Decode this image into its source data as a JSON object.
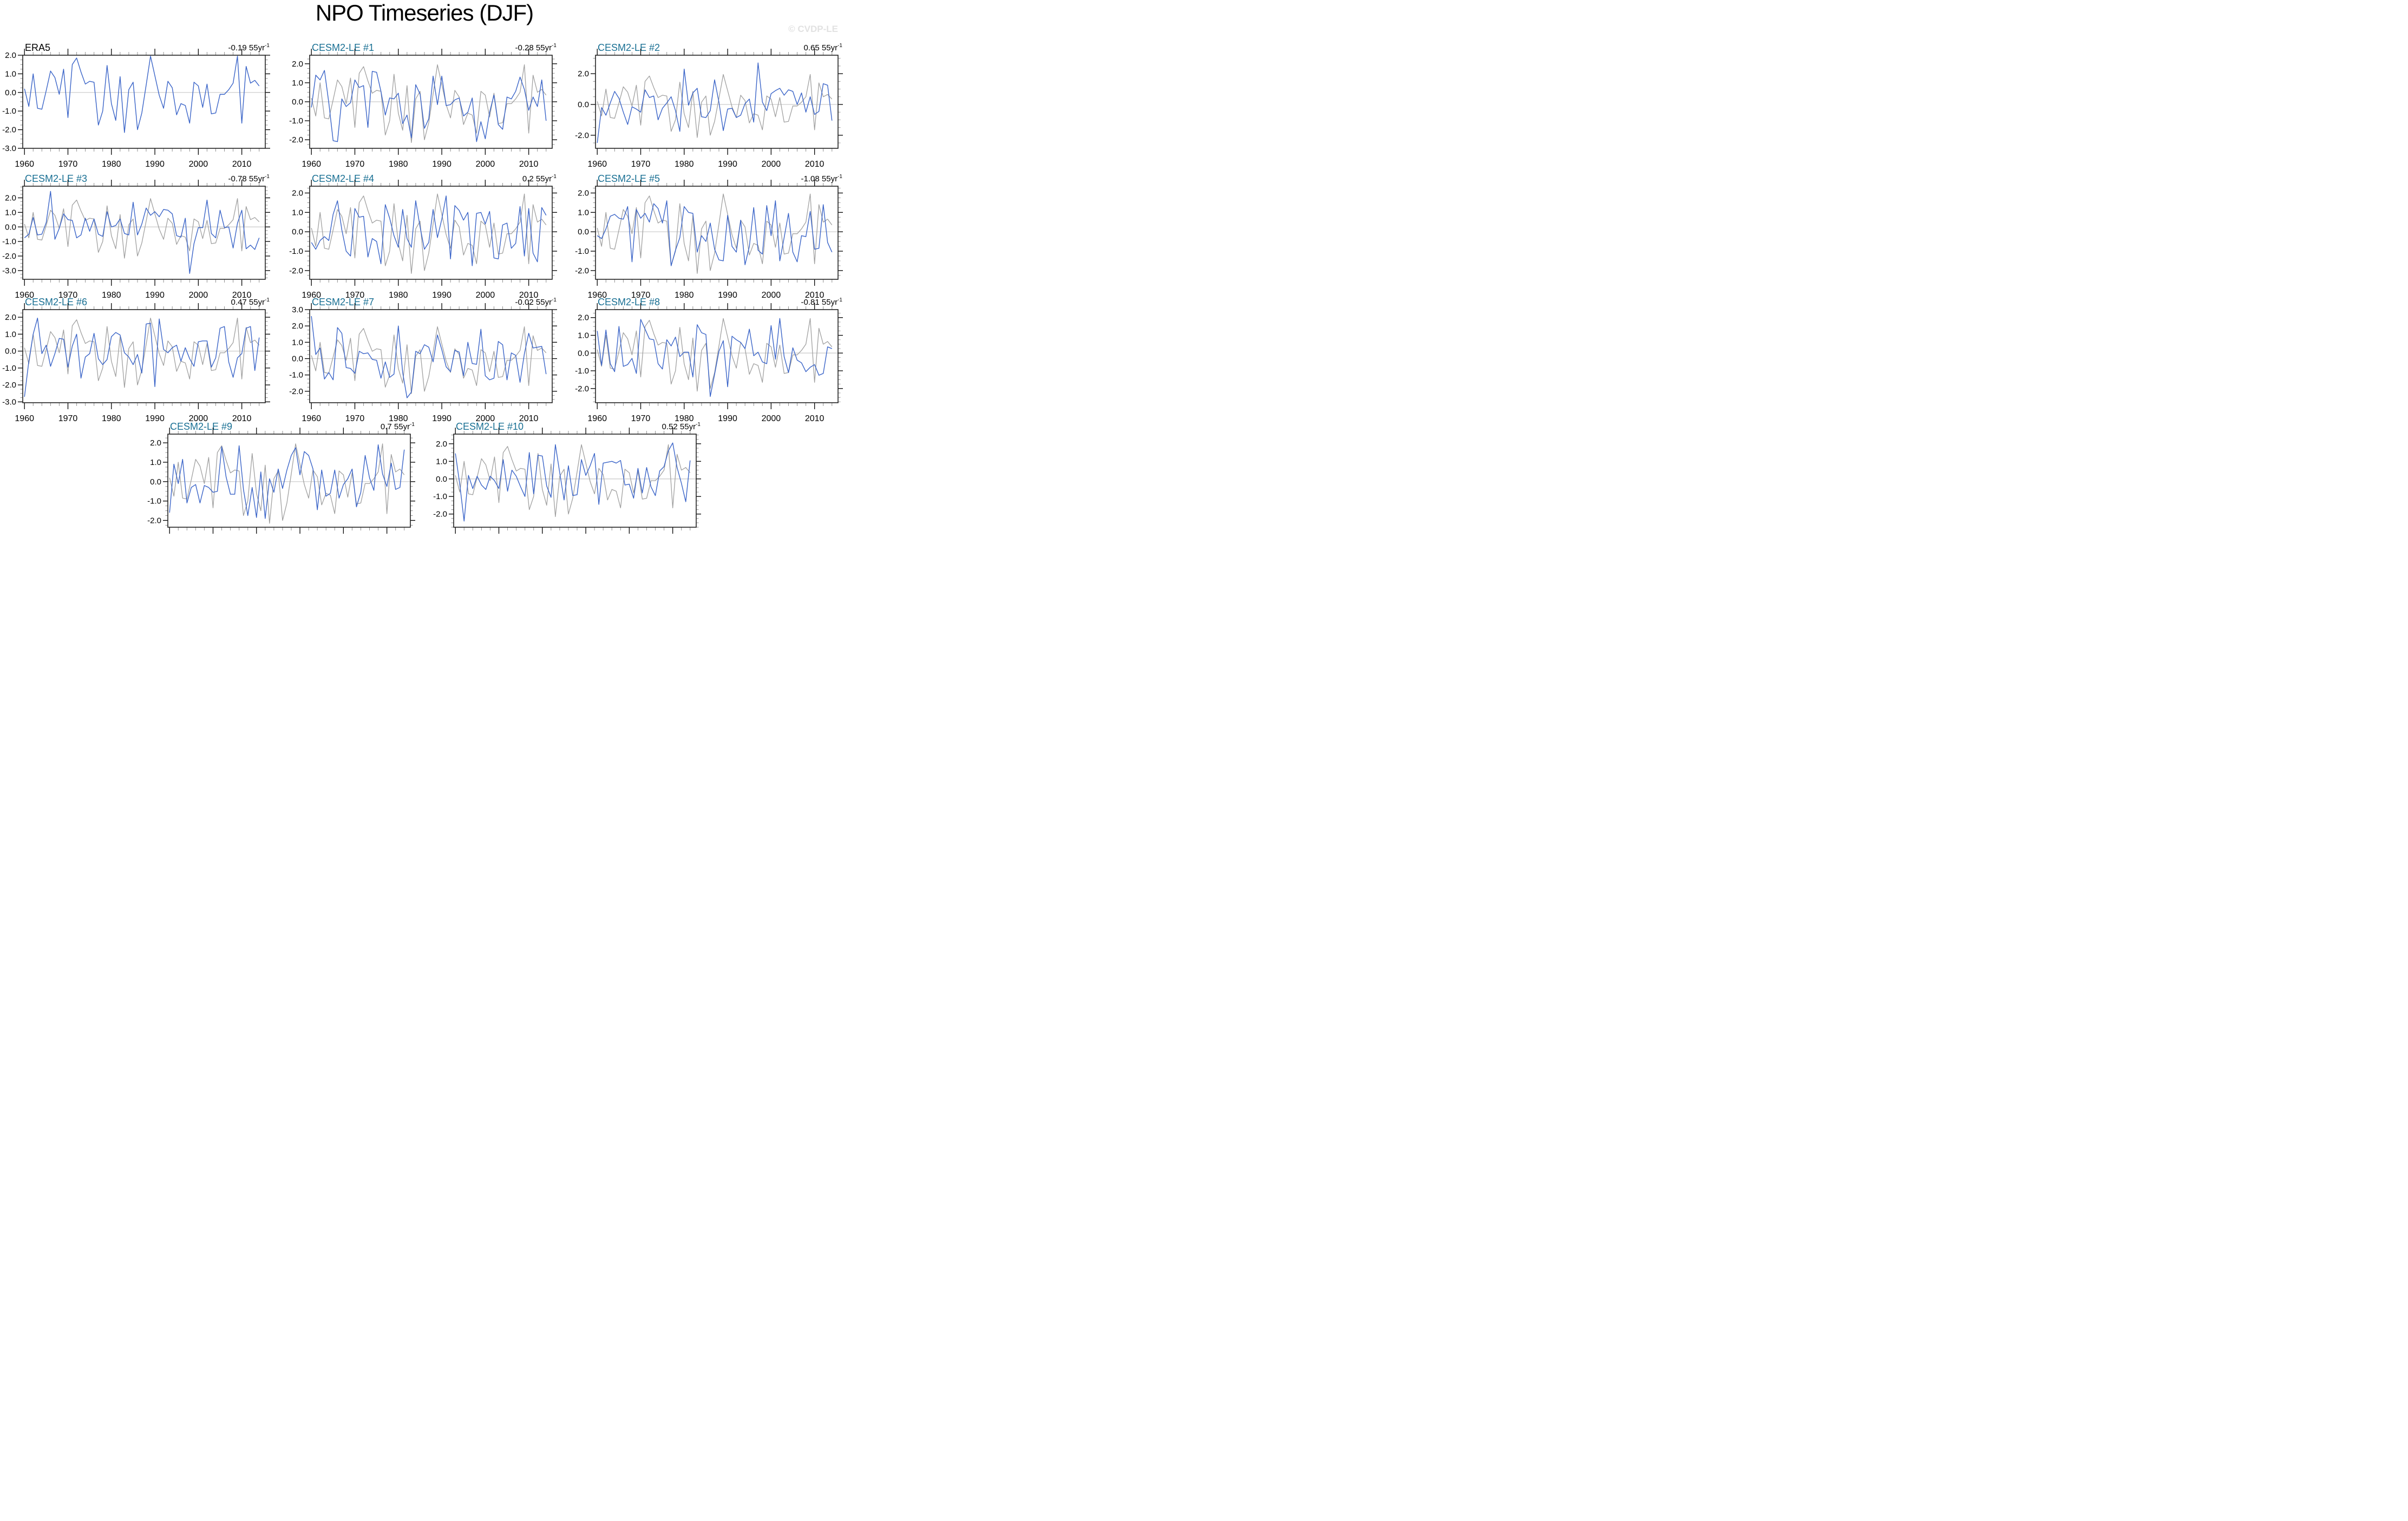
{
  "page": {
    "title": "NPO Timeseries (DJF)",
    "watermark": "© CVDP-LE"
  },
  "colors": {
    "member_line": "#3a64c8",
    "reference_line": "#a0a0a0",
    "zero_line": "#c9c9c9",
    "panel_title_model": "#186f93",
    "panel_title_obs": "#000000",
    "axis_border": "#222222",
    "major_tick": "#000000",
    "minor_tick": "#8f8f8f",
    "watermark": "#e2e2e2"
  },
  "chart_data": {
    "type": "line",
    "title": "NPO Timeseries (DJF)",
    "x": {
      "start": 1960,
      "end": 2014,
      "axis_min": 1959.6,
      "axis_max": 2015.4,
      "major_ticks": [
        1960,
        1970,
        1980,
        1990,
        2000,
        2010
      ],
      "minor_step": 2
    },
    "trend_unit": "55yr",
    "trend_exp": "-1",
    "grid": false,
    "zero_line": true,
    "reference_series": {
      "name": "ERA5",
      "values": [
        0.2,
        -0.75,
        1.0,
        -0.85,
        -0.9,
        0.1,
        1.15,
        0.8,
        -0.1,
        1.25,
        -1.35,
        1.5,
        1.85,
        1.1,
        0.45,
        0.6,
        0.55,
        -1.75,
        -1.0,
        1.45,
        -0.6,
        -1.5,
        0.85,
        -2.15,
        0.15,
        0.55,
        -2.0,
        -1.1,
        0.4,
        1.95,
        0.9,
        -0.15,
        -0.85,
        0.6,
        0.25,
        -1.2,
        -0.6,
        -0.7,
        -1.65,
        0.55,
        0.35,
        -0.8,
        0.45,
        -1.15,
        -1.1,
        -0.1,
        -0.1,
        0.15,
        0.5,
        1.95,
        -1.65,
        1.4,
        0.5,
        0.65,
        0.35
      ]
    },
    "panels": [
      {
        "title": "ERA5",
        "obs": true,
        "trend": "-0.19",
        "axis": {
          "min": -3.0,
          "max": 2.0,
          "major_ticks": [
            2,
            1,
            0,
            -1,
            -2,
            -3
          ],
          "minor_step": 0.25
        },
        "member_values": null
      },
      {
        "title": "CESM2-LE #1",
        "obs": false,
        "trend": "-0.28",
        "axis": {
          "min": -2.45,
          "max": 2.45,
          "major_ticks": [
            2,
            1,
            0,
            -1,
            -2
          ],
          "minor_step": 0.25
        },
        "member_values": [
          -0.3,
          1.4,
          1.15,
          1.65,
          -0.05,
          -2.05,
          -2.1,
          0.15,
          -0.25,
          -0.05,
          1.15,
          0.75,
          0.85,
          -1.35,
          1.6,
          1.55,
          0.55,
          -0.7,
          0.2,
          0.15,
          0.45,
          -1.15,
          -0.7,
          -1.9,
          0.9,
          0.4,
          -1.4,
          -0.9,
          1.35,
          -0.15,
          1.35,
          -0.2,
          -0.15,
          0.1,
          0.2,
          -0.75,
          -0.55,
          0.2,
          -2.1,
          -1.05,
          -1.95,
          -0.55,
          0.35,
          -1.2,
          -1.45,
          0.25,
          0.15,
          0.55,
          1.3,
          0.65,
          -0.45,
          0.25,
          -0.25,
          1.15,
          -1.0
        ]
      },
      {
        "title": "CESM2-LE #2",
        "obs": false,
        "trend": "0.65",
        "axis": {
          "min": -2.85,
          "max": 3.2,
          "major_ticks": [
            2,
            0,
            -2
          ],
          "minor_step": 0.5
        },
        "member_values": [
          -2.5,
          -0.2,
          -0.7,
          0.1,
          0.85,
          0.4,
          -0.5,
          -1.3,
          -0.15,
          -0.3,
          -0.5,
          0.95,
          0.45,
          0.55,
          -1.0,
          -0.25,
          0.1,
          0.5,
          -0.4,
          -1.75,
          2.3,
          -0.05,
          0.75,
          1.05,
          -0.8,
          -0.85,
          -0.4,
          1.6,
          0.15,
          -1.7,
          -0.3,
          -0.25,
          -0.85,
          -0.7,
          0.05,
          0.35,
          -1.15,
          2.7,
          0.15,
          -0.4,
          0.7,
          0.9,
          1.05,
          0.6,
          0.95,
          0.85,
          0.0,
          0.75,
          -0.5,
          0.5,
          -0.65,
          -0.45,
          1.35,
          1.25,
          -1.05
        ]
      },
      {
        "title": "CESM2-LE #3",
        "obs": false,
        "trend": "-0.78",
        "axis": {
          "min": -3.6,
          "max": 2.8,
          "major_ticks": [
            2,
            1,
            0,
            -1,
            -2,
            -3
          ],
          "minor_step": 0.25
        },
        "member_values": [
          -0.75,
          -0.5,
          0.65,
          -0.55,
          -0.5,
          0.3,
          2.45,
          -0.85,
          -0.1,
          0.9,
          0.5,
          0.45,
          -0.75,
          -0.55,
          0.6,
          -0.3,
          0.55,
          -0.5,
          -0.65,
          1.05,
          0.0,
          0.1,
          0.55,
          -0.45,
          -0.55,
          1.7,
          -0.55,
          0.2,
          1.3,
          0.8,
          1.05,
          0.7,
          1.2,
          1.15,
          0.9,
          -0.6,
          -0.7,
          0.6,
          -3.2,
          -1.15,
          -0.05,
          -0.05,
          1.85,
          -0.45,
          -0.75,
          1.15,
          -0.05,
          0.0,
          -1.45,
          0.25,
          1.15,
          -1.5,
          -1.25,
          -1.55,
          -0.75
        ]
      },
      {
        "title": "CESM2-LE #4",
        "obs": false,
        "trend": "0.2",
        "axis": {
          "min": -2.45,
          "max": 2.35,
          "major_ticks": [
            2,
            1,
            0,
            -1,
            -2
          ],
          "minor_step": 0.25
        },
        "member_values": [
          -0.55,
          -0.9,
          -0.45,
          -0.25,
          -0.45,
          0.9,
          1.6,
          0.1,
          -1.0,
          -1.25,
          1.2,
          0.75,
          0.8,
          -1.3,
          -0.35,
          -0.5,
          -1.65,
          1.4,
          0.7,
          -0.2,
          -0.8,
          1.15,
          -0.35,
          -0.8,
          1.6,
          0.25,
          -0.9,
          -0.55,
          1.15,
          -0.3,
          0.65,
          1.85,
          -1.4,
          1.35,
          1.1,
          0.6,
          1.0,
          -1.75,
          0.95,
          1.0,
          0.4,
          1.05,
          -1.35,
          -1.4,
          0.35,
          0.45,
          -0.85,
          -0.6,
          1.3,
          -1.25,
          1.2,
          -1.1,
          -1.55,
          1.25,
          0.85
        ]
      },
      {
        "title": "CESM2-LE #5",
        "obs": false,
        "trend": "-1.08",
        "axis": {
          "min": -2.45,
          "max": 2.35,
          "major_ticks": [
            2,
            1,
            0,
            -1,
            -2
          ],
          "minor_step": 0.25
        },
        "member_values": [
          -0.2,
          -0.35,
          0.15,
          0.8,
          0.9,
          0.7,
          0.65,
          1.3,
          -1.55,
          1.15,
          0.7,
          0.95,
          0.5,
          1.45,
          1.2,
          0.45,
          1.6,
          -1.75,
          -0.95,
          -0.3,
          1.3,
          1.0,
          0.95,
          -1.05,
          -0.2,
          -0.5,
          0.45,
          -0.9,
          -1.45,
          -1.5,
          0.85,
          -0.75,
          -1.05,
          0.6,
          -1.7,
          -0.75,
          1.25,
          -0.95,
          -1.15,
          1.35,
          -0.2,
          1.6,
          -1.5,
          -0.3,
          0.95,
          -1.05,
          -1.55,
          -0.2,
          -0.25,
          1.05,
          -0.9,
          -0.85,
          1.4,
          -0.55,
          -1.05
        ]
      },
      {
        "title": "CESM2-LE #6",
        "obs": false,
        "trend": "0.47",
        "axis": {
          "min": -3.05,
          "max": 2.45,
          "major_ticks": [
            2,
            1,
            0,
            -1,
            -2,
            -3
          ],
          "minor_step": 0.25
        },
        "member_values": [
          -2.7,
          -0.6,
          1.0,
          1.95,
          -0.15,
          0.35,
          -0.9,
          -0.15,
          0.75,
          0.7,
          -0.95,
          0.3,
          1.0,
          -1.6,
          -0.35,
          -0.15,
          1.05,
          -0.45,
          -0.8,
          -0.5,
          0.85,
          1.1,
          0.95,
          -0.1,
          -0.35,
          -0.8,
          -0.2,
          -1.3,
          1.6,
          1.65,
          -2.1,
          1.9,
          0.1,
          -0.1,
          0.2,
          0.35,
          -0.6,
          0.2,
          -0.45,
          -0.9,
          0.55,
          0.6,
          0.6,
          -0.95,
          -0.4,
          1.35,
          1.45,
          -0.65,
          -1.55,
          -0.4,
          -0.15,
          1.35,
          1.45,
          -1.15,
          0.8
        ]
      },
      {
        "title": "CESM2-LE #7",
        "obs": false,
        "trend": "-0.02",
        "axis": {
          "min": -2.7,
          "max": 3.0,
          "major_ticks": [
            3,
            2,
            1,
            0,
            -1,
            -2
          ],
          "minor_step": 0.25
        },
        "member_values": [
          2.6,
          0.25,
          0.65,
          -1.25,
          -0.85,
          -1.3,
          1.9,
          1.55,
          -0.55,
          -0.6,
          -0.9,
          0.45,
          0.3,
          0.35,
          -0.05,
          -0.1,
          -1.2,
          -0.2,
          -1.15,
          -0.95,
          2.0,
          -0.85,
          -2.4,
          -2.05,
          0.45,
          0.3,
          0.85,
          0.7,
          -0.2,
          1.45,
          0.55,
          -0.5,
          -0.8,
          0.5,
          0.4,
          -1.05,
          1.0,
          -0.3,
          -0.35,
          1.8,
          -1.05,
          -1.3,
          -1.2,
          1.05,
          0.85,
          -1.3,
          0.35,
          0.2,
          -1.45,
          0.3,
          1.55,
          0.65,
          0.7,
          0.75,
          -0.95
        ]
      },
      {
        "title": "CESM2-LE #8",
        "obs": false,
        "trend": "-0.81",
        "axis": {
          "min": -2.8,
          "max": 2.45,
          "major_ticks": [
            2,
            1,
            0,
            -1,
            -2
          ],
          "minor_step": 0.25
        },
        "member_values": [
          1.25,
          -0.7,
          1.3,
          -0.6,
          -1.05,
          1.5,
          -0.75,
          -0.65,
          -0.3,
          -1.15,
          1.9,
          1.35,
          0.8,
          0.75,
          -0.6,
          -0.9,
          0.75,
          0.4,
          0.9,
          -0.2,
          0.05,
          0.05,
          -1.35,
          1.6,
          1.15,
          1.05,
          -2.45,
          -1.2,
          0.1,
          0.7,
          -1.9,
          0.95,
          0.75,
          0.6,
          0.25,
          1.35,
          -0.15,
          0.05,
          -0.5,
          -0.6,
          1.55,
          -0.35,
          1.95,
          -0.2,
          -1.1,
          0.3,
          -0.4,
          -0.55,
          -1.05,
          -0.8,
          -0.65,
          -1.25,
          -1.15,
          0.35,
          0.25
        ]
      },
      {
        "title": "CESM2-LE #9",
        "obs": false,
        "trend": "0.7",
        "axis": {
          "min": -2.35,
          "max": 2.45,
          "major_ticks": [
            2,
            1,
            0,
            -1,
            -2
          ],
          "minor_step": 0.25
        },
        "member_values": [
          -1.6,
          0.9,
          -0.1,
          1.15,
          -1.1,
          -0.3,
          -0.15,
          -1.1,
          -0.2,
          -0.3,
          -0.55,
          -0.5,
          1.8,
          0.25,
          -0.65,
          -0.65,
          1.85,
          -0.4,
          -1.75,
          -0.3,
          -1.85,
          0.5,
          -1.9,
          0.15,
          -0.55,
          0.65,
          -0.35,
          0.6,
          1.35,
          1.75,
          0.35,
          1.55,
          1.35,
          0.65,
          -1.45,
          0.6,
          -0.75,
          -0.6,
          0.6,
          -0.85,
          -0.15,
          0.15,
          0.65,
          -1.3,
          -0.55,
          1.35,
          0.2,
          -0.45,
          1.9,
          0.4,
          -0.25,
          0.95,
          -0.4,
          -0.3,
          1.65
        ]
      },
      {
        "title": "CESM2-LE #10",
        "obs": false,
        "trend": "0.52",
        "axis": {
          "min": -2.75,
          "max": 2.55,
          "major_ticks": [
            2,
            1,
            0,
            -1,
            -2
          ],
          "minor_step": 0.25
        },
        "member_values": [
          1.45,
          -0.3,
          -2.4,
          0.2,
          -0.55,
          0.15,
          -0.35,
          -0.6,
          0.15,
          -0.1,
          -0.55,
          1.1,
          -0.7,
          0.5,
          0.15,
          -0.45,
          -1.0,
          1.5,
          -0.85,
          1.35,
          1.3,
          -0.4,
          -1.05,
          1.95,
          0.35,
          -1.2,
          0.75,
          -0.95,
          -0.9,
          1.1,
          0.2,
          0.75,
          1.45,
          -1.45,
          0.9,
          0.95,
          1.0,
          0.9,
          1.05,
          -0.35,
          -0.3,
          -1.1,
          0.6,
          -0.8,
          0.65,
          -0.45,
          -0.95,
          0.45,
          0.7,
          1.6,
          2.05,
          0.65,
          -0.25,
          -1.3,
          1.05
        ]
      }
    ]
  }
}
